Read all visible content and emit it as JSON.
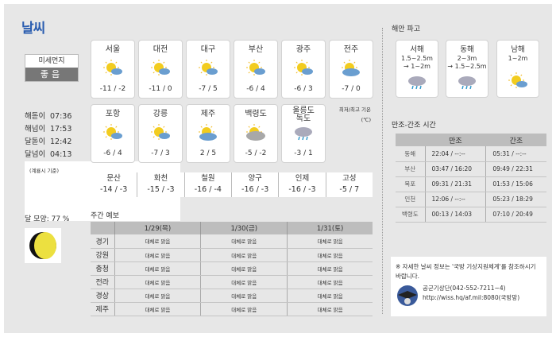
{
  "title": "날씨",
  "dust": {
    "label": "미세먼지",
    "value": "좋음"
  },
  "sun_times": [
    {
      "label": "해돋이",
      "time": "07:36"
    },
    {
      "label": "해넘이",
      "time": "17:53"
    },
    {
      "label": "달돋이",
      "time": "12:42"
    },
    {
      "label": "달넘이",
      "time": "04:13"
    }
  ],
  "sun_note": "(계룡시 기준)",
  "cities": [
    {
      "name": "서울",
      "icon": "sun-cloud",
      "temp": "-11 / -2"
    },
    {
      "name": "대전",
      "icon": "sun-cloud",
      "temp": "-11 / 0"
    },
    {
      "name": "대구",
      "icon": "sun-cloud",
      "temp": "-7 / 5"
    },
    {
      "name": "부산",
      "icon": "sun-cloud",
      "temp": "-6 / 4"
    },
    {
      "name": "광주",
      "icon": "sun-cloud",
      "temp": "-6 / 3"
    },
    {
      "name": "전주",
      "icon": "cloud-sun",
      "temp": "-7 / 0"
    },
    {
      "name": "포항",
      "icon": "sun-cloud",
      "temp": "-6 / 4"
    },
    {
      "name": "강릉",
      "icon": "sun-cloud",
      "temp": "-7 / 3"
    },
    {
      "name": "제주",
      "icon": "cloud-sun",
      "temp": "2 / 5"
    },
    {
      "name": "백령도",
      "icon": "gray-cloud-sun",
      "temp": "-5 / -2"
    },
    {
      "name": "울릉도\n독도",
      "icon": "rain-cloud",
      "temp": "-3 / 1"
    }
  ],
  "temp_unit": {
    "line1": "최저/최고 기온",
    "line2": "(℃)"
  },
  "mini": [
    {
      "name": "문산",
      "temp": "-14 / -3"
    },
    {
      "name": "화천",
      "temp": "-15 / -3"
    },
    {
      "name": "철원",
      "temp": "-16 / -4"
    },
    {
      "name": "양구",
      "temp": "-16 / -3"
    },
    {
      "name": "인제",
      "temp": "-16 / -3"
    },
    {
      "name": "고성",
      "temp": "-5 / 7"
    }
  ],
  "moon": {
    "label": "달 모양: 77 %",
    "phase_percent": 77
  },
  "weekly": {
    "title": "주간 예보",
    "dates": [
      "1/29(목)",
      "1/30(금)",
      "1/31(토)"
    ],
    "rows": [
      {
        "region": "경기",
        "v": [
          "대체로 맑음",
          "대체로 맑음",
          "대체로 맑음"
        ]
      },
      {
        "region": "강원",
        "v": [
          "대체로 맑음",
          "대체로 맑음",
          "대체로 맑음"
        ]
      },
      {
        "region": "충청",
        "v": [
          "대체로 맑음",
          "대체로 맑음",
          "대체로 맑음"
        ]
      },
      {
        "region": "전라",
        "v": [
          "대체로 맑음",
          "대체로 맑음",
          "대체로 맑음"
        ]
      },
      {
        "region": "경상",
        "v": [
          "대체로 맑음",
          "대체로 맑음",
          "대체로 맑음"
        ]
      },
      {
        "region": "제주",
        "v": [
          "대체로 맑음",
          "대체로 맑음",
          "대체로 맑음"
        ]
      }
    ]
  },
  "waves": {
    "title": "해안 파고",
    "items": [
      {
        "name": "서해",
        "l1": "1.5~2.5m",
        "l2": "→ 1~2m",
        "icon": "rain-cloud"
      },
      {
        "name": "동해",
        "l1": "2~3m",
        "l2": "→ 1.5~2.5m",
        "icon": "rain-cloud"
      },
      {
        "name": "남해",
        "l1": "1~2m",
        "l2": "",
        "icon": "sun-cloud"
      }
    ]
  },
  "tide": {
    "title": "만조-간조 시간",
    "headers": [
      "",
      "만조",
      "간조"
    ],
    "rows": [
      [
        "동해",
        "22:04 / --:--",
        "05:31 / --:--"
      ],
      [
        "부산",
        "03:47 / 16:20",
        "09:49 / 22:31"
      ],
      [
        "목포",
        "09:31 / 21:31",
        "01:53 / 15:06"
      ],
      [
        "인천",
        "12:06 / --:--",
        "05:23 / 18:29"
      ],
      [
        "백령도",
        "00:13 / 14:03",
        "07:10 / 20:49"
      ]
    ]
  },
  "note": {
    "text": "※ 자세한 날씨 정보는 '국방 기상지원체계'를 참조하시기 바랍니다.",
    "org": "공군기상단(042-552-7211~4)",
    "url": "http://wiss.hq/af.mil:8080(국방망)"
  }
}
